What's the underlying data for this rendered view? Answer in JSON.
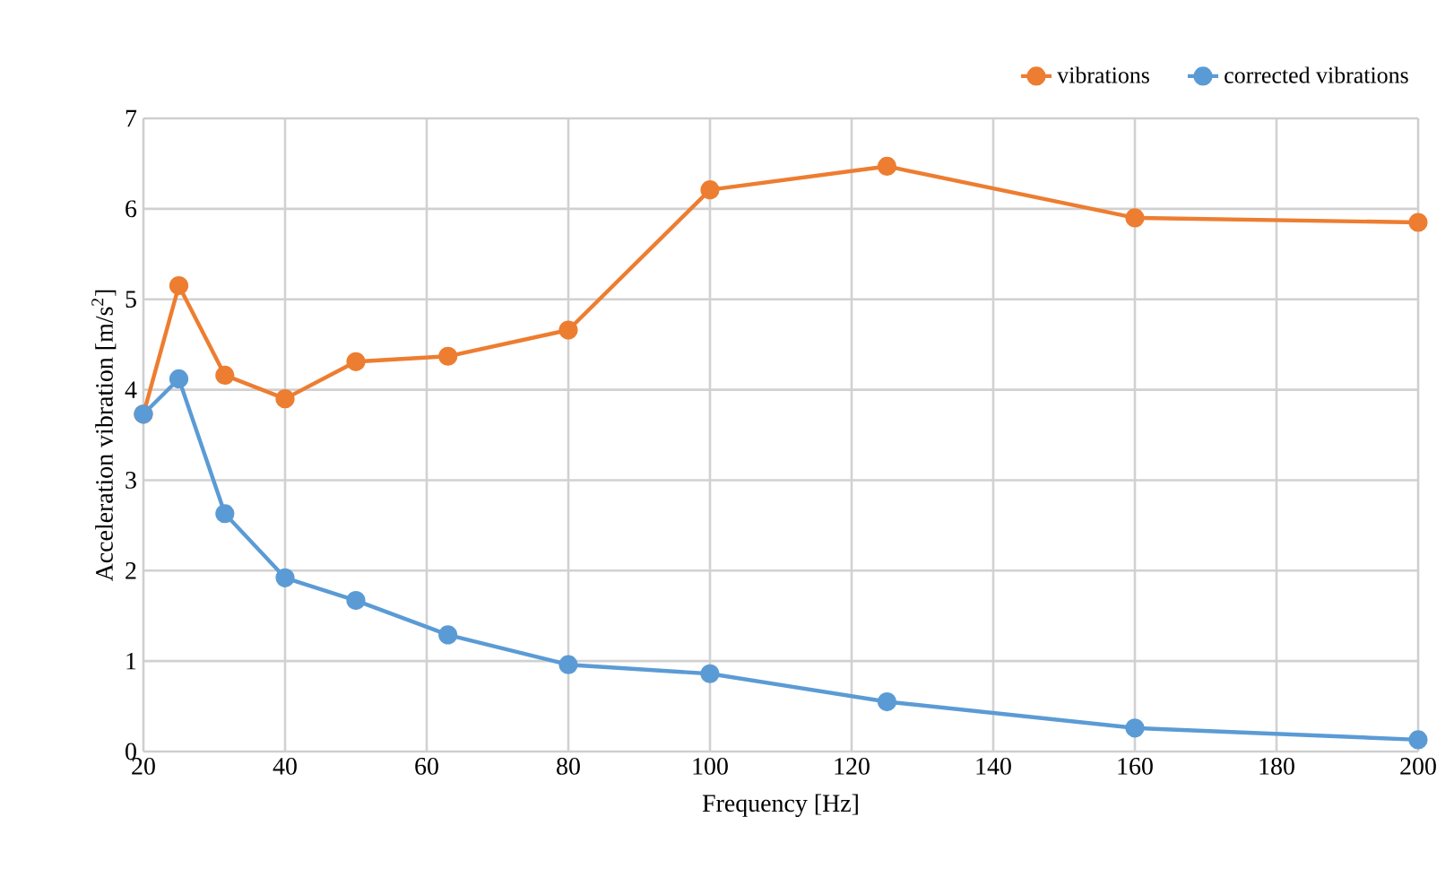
{
  "chart_data": {
    "type": "line",
    "xlabel": "Frequency [Hz]",
    "ylabel": "Acceleration vibration [m/s$^{2}$]",
    "x": [
      20,
      25,
      31.5,
      40,
      50,
      63,
      80,
      100,
      125,
      160,
      200
    ],
    "series": [
      {
        "name": "vibrations",
        "color": "#ed7d31",
        "values": [
          3.73,
          5.15,
          4.16,
          3.9,
          4.31,
          4.37,
          4.66,
          6.21,
          6.47,
          5.9,
          5.85
        ]
      },
      {
        "name": "corrected vibrations",
        "color": "#5b9bd5",
        "values": [
          3.73,
          4.12,
          2.63,
          1.92,
          1.67,
          1.29,
          0.96,
          0.86,
          0.55,
          0.26,
          0.13
        ]
      }
    ],
    "xlim": [
      20,
      200
    ],
    "ylim": [
      0,
      7
    ],
    "xticks": [
      20,
      40,
      60,
      80,
      100,
      120,
      140,
      160,
      180,
      200
    ],
    "yticks": [
      0,
      1,
      2,
      3,
      4,
      5,
      6,
      7
    ],
    "grid": true,
    "legend": "top right",
    "marker": "circle",
    "line_style": "solid"
  }
}
